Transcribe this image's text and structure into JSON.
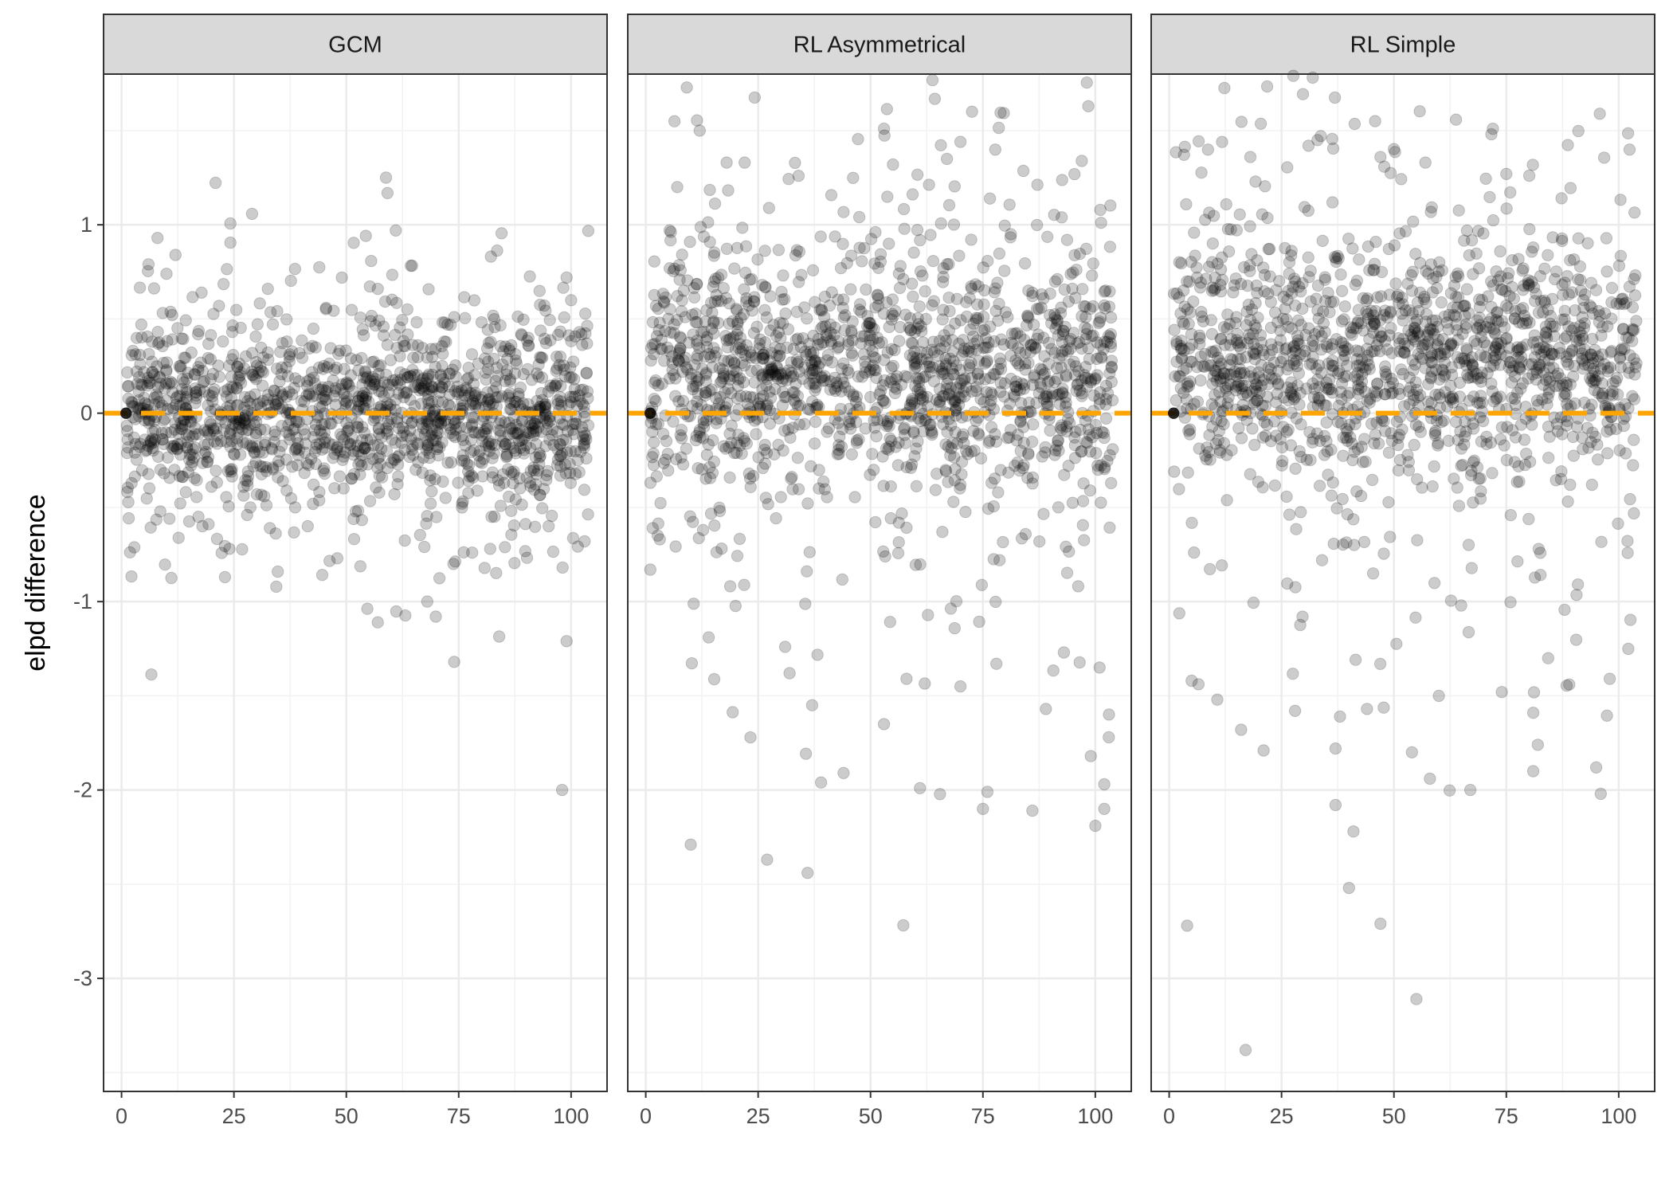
{
  "chart_data": {
    "type": "scatter",
    "ylabel": "elpd difference",
    "xlabel": "",
    "xlim": [
      -4,
      108
    ],
    "ylim": [
      -3.6,
      1.8
    ],
    "x_ticks": [
      0,
      25,
      50,
      75,
      100
    ],
    "x_tick_labels": [
      "0",
      "25",
      "50",
      "75",
      "100"
    ],
    "y_ticks": [
      -3,
      -2,
      -1,
      0,
      1
    ],
    "y_tick_labels": [
      "-3",
      "-2",
      "-1",
      "0",
      "1"
    ],
    "grid": true,
    "reference_line": {
      "y": 0,
      "style": "dashed",
      "color": "#FFA500"
    },
    "point_color": "#000000",
    "point_opacity": 0.2,
    "panels": [
      {
        "title": "GCM",
        "summary": {
          "x_range": [
            1,
            104
          ],
          "center": 0.0,
          "core_spread": 0.22,
          "tail_spread": 0.45
        },
        "outliers": [
          {
            "x": 8,
            "y": 0.93
          },
          {
            "x": 12,
            "y": 0.84
          },
          {
            "x": 10,
            "y": 0.74
          },
          {
            "x": 6,
            "y": 0.79
          },
          {
            "x": 23,
            "y": -0.87
          },
          {
            "x": 24,
            "y": -0.72
          },
          {
            "x": 49,
            "y": 0.72
          },
          {
            "x": 57,
            "y": 0.66
          },
          {
            "x": 61,
            "y": 0.97
          },
          {
            "x": 57,
            "y": -1.11
          },
          {
            "x": 68,
            "y": -1.0
          },
          {
            "x": 74,
            "y": -1.32
          },
          {
            "x": 74,
            "y": 0.51
          },
          {
            "x": 99,
            "y": 0.72
          },
          {
            "x": 100,
            "y": 0.6
          },
          {
            "x": 99,
            "y": -1.21
          },
          {
            "x": 98,
            "y": -2.0
          },
          {
            "x": 48,
            "y": -0.77
          },
          {
            "x": 78,
            "y": -0.74
          },
          {
            "x": 82,
            "y": -0.72
          },
          {
            "x": 103,
            "y": -0.68
          },
          {
            "x": 33,
            "y": -0.61
          },
          {
            "x": 18,
            "y": -0.6
          }
        ]
      },
      {
        "title": "RL Asymmetrical",
        "summary": {
          "x_range": [
            1,
            104
          ],
          "center": 0.22,
          "core_spread": 0.28,
          "tail_spread": 0.75
        },
        "outliers": [
          {
            "x": 12,
            "y": 1.5
          },
          {
            "x": 53,
            "y": 1.51
          },
          {
            "x": 18,
            "y": 1.33
          },
          {
            "x": 22,
            "y": 1.33
          },
          {
            "x": 70,
            "y": 1.44
          },
          {
            "x": 67,
            "y": 1.35
          },
          {
            "x": 34,
            "y": 1.26
          },
          {
            "x": 55,
            "y": 1.32
          },
          {
            "x": 10,
            "y": -2.29
          },
          {
            "x": 27,
            "y": -2.37
          },
          {
            "x": 36,
            "y": -2.44
          },
          {
            "x": 39,
            "y": -1.96
          },
          {
            "x": 44,
            "y": -1.91
          },
          {
            "x": 61,
            "y": -1.99
          },
          {
            "x": 76,
            "y": -2.01
          },
          {
            "x": 75,
            "y": -2.1
          },
          {
            "x": 86,
            "y": -2.11
          },
          {
            "x": 100,
            "y": -2.19
          },
          {
            "x": 102,
            "y": -2.1
          },
          {
            "x": 102,
            "y": -1.97
          },
          {
            "x": 99,
            "y": -1.82
          },
          {
            "x": 103,
            "y": -1.72
          },
          {
            "x": 53,
            "y": -1.65
          },
          {
            "x": 89,
            "y": -1.57
          },
          {
            "x": 37,
            "y": -1.55
          },
          {
            "x": 14,
            "y": -1.19
          },
          {
            "x": 32,
            "y": -1.38
          },
          {
            "x": 70,
            "y": -1.45
          },
          {
            "x": 58,
            "y": -1.41
          },
          {
            "x": 31,
            "y": -1.24
          },
          {
            "x": 78,
            "y": -1.33
          },
          {
            "x": 93,
            "y": -1.27
          }
        ]
      },
      {
        "title": "RL Simple",
        "summary": {
          "x_range": [
            1,
            104
          ],
          "center": 0.28,
          "core_spread": 0.28,
          "tail_spread": 0.8
        },
        "outliers": [
          {
            "x": 72,
            "y": 1.51
          },
          {
            "x": 33,
            "y": 1.45
          },
          {
            "x": 31,
            "y": 1.42
          },
          {
            "x": 47,
            "y": 1.36
          },
          {
            "x": 57,
            "y": 1.33
          },
          {
            "x": 75,
            "y": 1.27
          },
          {
            "x": 17,
            "y": -3.38
          },
          {
            "x": 55,
            "y": -3.11
          },
          {
            "x": 4,
            "y": -2.72
          },
          {
            "x": 47,
            "y": -2.71
          },
          {
            "x": 40,
            "y": -2.52
          },
          {
            "x": 41,
            "y": -2.22
          },
          {
            "x": 37,
            "y": -2.08
          },
          {
            "x": 67,
            "y": -2.0
          },
          {
            "x": 96,
            "y": -2.02
          },
          {
            "x": 95,
            "y": -1.88
          },
          {
            "x": 58,
            "y": -1.94
          },
          {
            "x": 54,
            "y": -1.8
          },
          {
            "x": 21,
            "y": -1.79
          },
          {
            "x": 37,
            "y": -1.78
          },
          {
            "x": 16,
            "y": -1.68
          },
          {
            "x": 81,
            "y": -1.9
          },
          {
            "x": 82,
            "y": -1.76
          },
          {
            "x": 81,
            "y": -1.59
          },
          {
            "x": 5,
            "y": -1.42
          },
          {
            "x": 28,
            "y": -1.58
          },
          {
            "x": 38,
            "y": -1.61
          },
          {
            "x": 44,
            "y": -1.57
          },
          {
            "x": 60,
            "y": -1.5
          },
          {
            "x": 74,
            "y": -1.48
          },
          {
            "x": 98,
            "y": -1.41
          },
          {
            "x": 89,
            "y": -1.44
          }
        ]
      }
    ]
  }
}
